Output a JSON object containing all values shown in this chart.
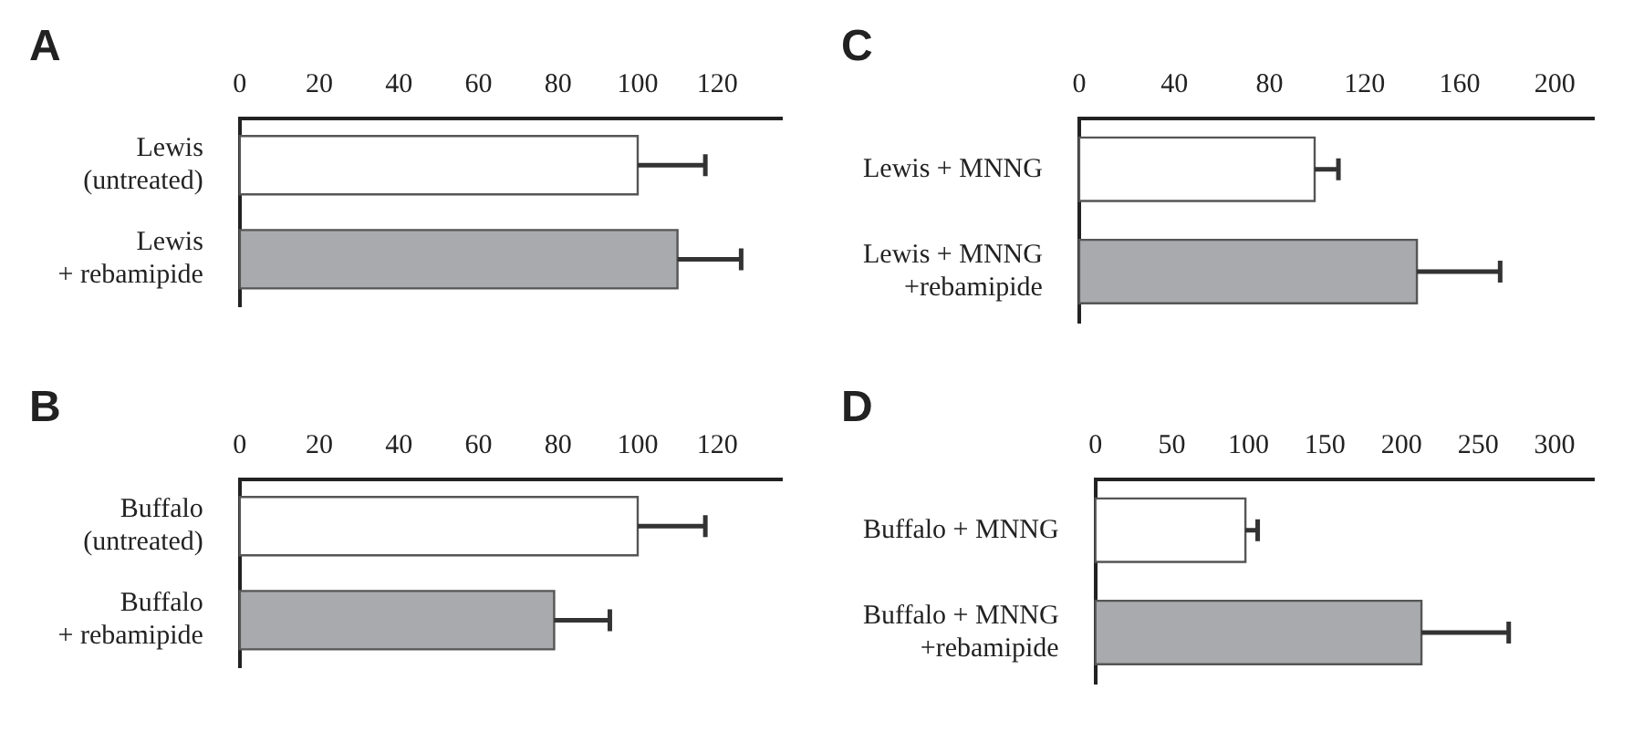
{
  "chart_data": [
    {
      "type": "bar",
      "title": "A",
      "orientation": "horizontal",
      "categories": [
        "Lewis\n (untreated)",
        "Lewis\n + rebamipide"
      ],
      "values": [
        100,
        110
      ],
      "colors": [
        "#ffffff",
        "#a9aaad"
      ],
      "errors": [
        [
          100,
          117
        ],
        [
          110,
          126
        ]
      ],
      "xlim": [
        0,
        136
      ],
      "xticks": [
        0,
        20,
        40,
        60,
        80,
        100,
        120
      ]
    },
    {
      "type": "bar",
      "title": "C",
      "orientation": "horizontal",
      "categories": [
        "Lewis + MNNG",
        "Lewis + MNNG\n +rebamipide"
      ],
      "values": [
        99,
        142
      ],
      "colors": [
        "#ffffff",
        "#a9aaad"
      ],
      "errors": [
        [
          99,
          109
        ],
        [
          142,
          177
        ]
      ],
      "xlim": [
        0,
        216
      ],
      "xticks": [
        0,
        40,
        80,
        120,
        160,
        200
      ]
    },
    {
      "type": "bar",
      "title": "B",
      "orientation": "horizontal",
      "categories": [
        "Buffalo\n (untreated)",
        "Buffalo\n + rebamipide"
      ],
      "values": [
        100,
        79
      ],
      "colors": [
        "#ffffff",
        "#a9aaad"
      ],
      "errors": [
        [
          100,
          117
        ],
        [
          79,
          93
        ]
      ],
      "xlim": [
        0,
        136
      ],
      "xticks": [
        0,
        20,
        40,
        60,
        80,
        100,
        120
      ]
    },
    {
      "type": "bar",
      "title": "D",
      "orientation": "horizontal",
      "categories": [
        "Buffalo + MNNG",
        "Buffalo + MNNG\n +rebamipide"
      ],
      "values": [
        98,
        213
      ],
      "colors": [
        "#ffffff",
        "#a9aaad"
      ],
      "errors": [
        [
          98,
          106
        ],
        [
          213,
          270
        ]
      ],
      "xlim": [
        0,
        325
      ],
      "xticks": [
        0,
        50,
        100,
        150,
        200,
        250,
        300
      ]
    }
  ]
}
